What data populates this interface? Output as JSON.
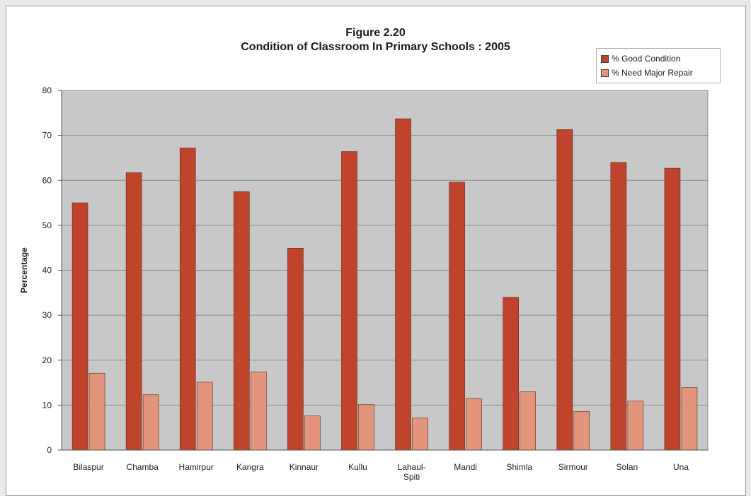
{
  "title_line1": "Figure 2.20",
  "title_line2": "Condition of Classroom In Primary Schools : 2005",
  "colors": {
    "plot_background": "#c8c8c8",
    "good": "#c0442c",
    "repair": "#e2957b"
  },
  "chart_data": {
    "type": "bar",
    "title": "Condition of Classroom In Primary Schools : 2005",
    "xlabel": "",
    "ylabel": "Percentage",
    "ylim": [
      0,
      80
    ],
    "yticks": [
      0,
      10,
      20,
      30,
      40,
      50,
      60,
      70,
      80
    ],
    "grid": true,
    "legend_position": "top-right",
    "categories": [
      "Bilaspur",
      "Chamba",
      "Hamirpur",
      "Kangra",
      "Kinnaur",
      "Kullu",
      "Lahaul-Spiti",
      "Mandi",
      "Shimla",
      "Sirmour",
      "Solan",
      "Una"
    ],
    "series": [
      {
        "name": "% Good Condition",
        "values": [
          55,
          61.7,
          67.2,
          57.5,
          44.9,
          66.4,
          73.7,
          59.6,
          34,
          71.3,
          64,
          62.7
        ]
      },
      {
        "name": "% Need Major Repair",
        "values": [
          17.1,
          12.3,
          15.1,
          17.4,
          7.6,
          10.1,
          7.1,
          11.5,
          13,
          8.6,
          10.9,
          13.9
        ]
      }
    ]
  }
}
